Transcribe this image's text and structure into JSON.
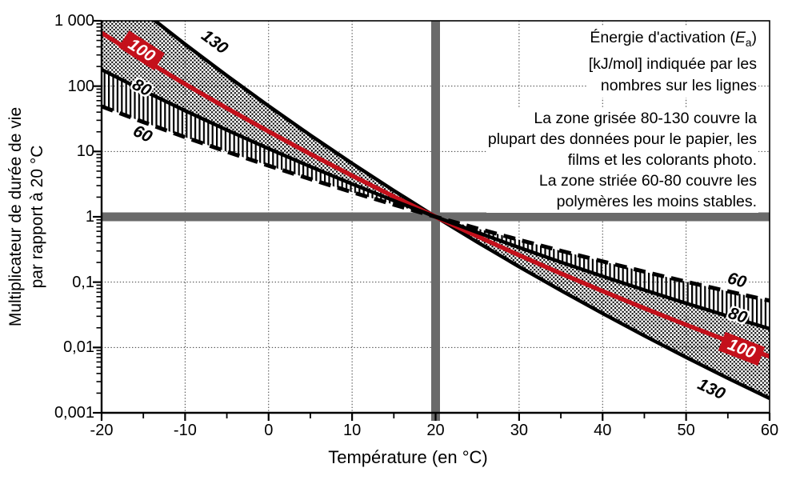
{
  "figure": {
    "background": "#ffffff",
    "accent_red": "#c4101b",
    "crosshair_gray": "#6a6a6a",
    "grid_color": "#3c3c3c"
  },
  "y_axis": {
    "title_line1": "Multiplicateur de durée de vie",
    "title_line2": "par rapport à 20 °C",
    "tick_labels": [
      "1 000",
      "100",
      "10",
      "1",
      "0,1",
      "0,01",
      "0,001"
    ],
    "tick_values": [
      1000,
      100,
      10,
      1,
      0.1,
      0.01,
      0.001
    ]
  },
  "x_axis": {
    "title": "Température (en °C)",
    "tick_labels": [
      "-20",
      "-10",
      "0",
      "10",
      "20",
      "30",
      "40",
      "50",
      "60"
    ],
    "tick_values": [
      -20,
      -10,
      0,
      10,
      20,
      30,
      40,
      50,
      60
    ],
    "minor_tick_values": [
      -15,
      -5,
      5,
      15,
      25,
      35,
      45,
      55
    ]
  },
  "annotations": {
    "energy_note": {
      "line1_pre": "Énergie d'activation (",
      "line1_symbol": "E",
      "line1_sub": "a",
      "line1_post": ")",
      "line2": "[kJ/mol] indiquée par les",
      "line3": "nombres sur les lignes"
    },
    "zones_note": {
      "line1": "La zone grisée 80-130 couvre la",
      "line2": "plupart des données pour le papier, les",
      "line3": "films et les colorants photo.",
      "line4": "La zone striée 60-80 couvre les",
      "line5": "polymères les moins stables."
    }
  },
  "chart_data": {
    "type": "line",
    "title": "",
    "xlabel": "Température (en °C)",
    "ylabel": "Multiplicateur de durée de vie par rapport à 20 °C",
    "x_range": [
      -20,
      60
    ],
    "y_range": [
      0.001,
      1000
    ],
    "y_scale": "log",
    "grid": "dotted major gridlines",
    "legend_position": "labels on lines",
    "reference_cross": {
      "x": 20,
      "y": 1
    },
    "x_values": [
      -20,
      -15,
      -10,
      -5,
      0,
      5,
      10,
      15,
      20,
      25,
      30,
      35,
      40,
      45,
      50,
      55,
      60
    ],
    "series": [
      {
        "name": "130",
        "ea_kj_per_mol": 130,
        "color": "#000000",
        "dashed": false,
        "values": [
          4580,
          1383,
          437.3,
          144.5,
          49.67,
          17.75,
          6.578,
          2.523,
          1,
          0.4088,
          0.1721,
          0.0745,
          0.0332,
          0.0151,
          0.00707,
          0.00338,
          0.00166
        ]
      },
      {
        "name": "100",
        "ea_kj_per_mol": 100,
        "color": "#c4101b",
        "dashed": false,
        "values": [
          653.4,
          260.6,
          107.5,
          45.84,
          20.17,
          9.139,
          4.259,
          2.038,
          1,
          0.5026,
          0.2583,
          0.1357,
          0.0728,
          0.0398,
          0.0222,
          0.0126,
          0.00725
        ]
      },
      {
        "name": "80",
        "ea_kj_per_mol": 80,
        "color": "#000000",
        "dashed": false,
        "values": [
          178.9,
          85.67,
          42.19,
          21.33,
          11.06,
          5.871,
          3.188,
          1.768,
          1,
          0.5767,
          0.3386,
          0.2023,
          0.1229,
          0.0758,
          0.0475,
          0.0302,
          0.0194
        ]
      },
      {
        "name": "60",
        "ea_kj_per_mol": 60,
        "color": "#000000",
        "dashed": true,
        "values": [
          48.91,
          28.16,
          16.55,
          9.926,
          6.065,
          3.772,
          2.386,
          1.533,
          1,
          0.6618,
          0.4439,
          0.3017,
          0.2076,
          0.1446,
          0.1017,
          0.0724,
          0.0521
        ]
      }
    ],
    "bands": [
      {
        "name": "zone-grisee-80-130",
        "lower": "80",
        "upper": "130",
        "pattern": "stipple"
      },
      {
        "name": "zone-striee-60-80",
        "lower": "60",
        "upper": "80",
        "pattern": "hatch-vertical"
      }
    ],
    "line_labels": [
      {
        "id": "130-left",
        "text": "130",
        "style": "plain"
      },
      {
        "id": "100-left",
        "text": "100",
        "style": "box"
      },
      {
        "id": "80-left",
        "text": "80",
        "style": "halo"
      },
      {
        "id": "60-left",
        "text": "60",
        "style": "plain"
      },
      {
        "id": "60-right",
        "text": "60",
        "style": "halo"
      },
      {
        "id": "80-right",
        "text": "80",
        "style": "halo"
      },
      {
        "id": "100-right",
        "text": "100",
        "style": "box"
      },
      {
        "id": "130-right",
        "text": "130",
        "style": "plain"
      }
    ]
  }
}
